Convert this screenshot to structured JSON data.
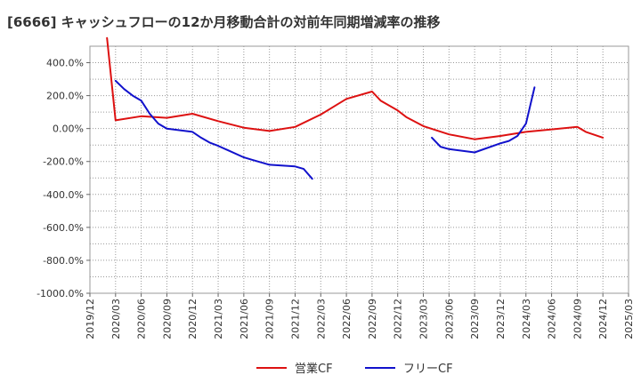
{
  "chart_data": {
    "type": "line",
    "title": "[6666]  キャッシュフローの12か月移動合計の対前年同期増減率の推移",
    "xlabel": "",
    "ylabel": "",
    "ylim": [
      -1000,
      500
    ],
    "y_ticks": [
      400,
      200,
      0,
      -200,
      -400,
      -600,
      -800,
      -1000
    ],
    "y_tick_labels": [
      "400.0%",
      "200.0%",
      "0.00%",
      "-200.0%",
      "-400.0%",
      "-600.0%",
      "-800.0%",
      "-1000.0%"
    ],
    "x_ticks": [
      "2019/12",
      "2020/03",
      "2020/06",
      "2020/09",
      "2020/12",
      "2021/03",
      "2021/06",
      "2021/09",
      "2021/12",
      "2022/03",
      "2022/06",
      "2022/09",
      "2022/12",
      "2023/03",
      "2023/06",
      "2023/09",
      "2023/12",
      "2024/03",
      "2024/06",
      "2024/09",
      "2024/12",
      "2025/03"
    ],
    "grid": true,
    "legend_position": "bottom-center",
    "series": [
      {
        "name": "営業CF",
        "color": "#dd1111",
        "points": [
          [
            "2020/02",
            550
          ],
          [
            "2020/03",
            50
          ],
          [
            "2020/06",
            75
          ],
          [
            "2020/09",
            65
          ],
          [
            "2020/12",
            90
          ],
          [
            "2021/03",
            45
          ],
          [
            "2021/06",
            5
          ],
          [
            "2021/09",
            -15
          ],
          [
            "2021/12",
            10
          ],
          [
            "2022/03",
            85
          ],
          [
            "2022/06",
            180
          ],
          [
            "2022/09",
            225
          ],
          [
            "2022/10",
            170
          ],
          [
            "2022/12",
            110
          ],
          [
            "2023/01",
            70
          ],
          [
            "2023/03",
            15
          ],
          [
            "2023/06",
            -35
          ],
          [
            "2023/09",
            -65
          ],
          [
            "2023/12",
            -45
          ],
          [
            "2024/03",
            -20
          ],
          [
            "2024/06",
            -5
          ],
          [
            "2024/09",
            10
          ],
          [
            "2024/10",
            -20
          ],
          [
            "2024/12",
            -55
          ]
        ]
      },
      {
        "name": "フリーCF",
        "color": "#1111cc",
        "points": [
          [
            "2020/03",
            290
          ],
          [
            "2020/04",
            240
          ],
          [
            "2020/05",
            200
          ],
          [
            "2020/06",
            170
          ],
          [
            "2020/07",
            90
          ],
          [
            "2020/08",
            30
          ],
          [
            "2020/09",
            0
          ],
          [
            "2020/12",
            -20
          ],
          [
            "2021/01",
            -55
          ],
          [
            "2021/02",
            -85
          ],
          [
            "2021/03",
            -105
          ],
          [
            "2021/06",
            -175
          ],
          [
            "2021/07",
            -190
          ],
          [
            "2021/09",
            -220
          ],
          [
            "2021/12",
            -230
          ],
          [
            "2022/01",
            -245
          ],
          [
            "2022/02",
            -305
          ],
          null,
          [
            "2023/04",
            -55
          ],
          [
            "2023/05",
            -110
          ],
          [
            "2023/06",
            -125
          ],
          [
            "2023/09",
            -145
          ],
          [
            "2023/12",
            -90
          ],
          [
            "2024/01",
            -75
          ],
          [
            "2024/02",
            -45
          ],
          [
            "2024/03",
            30
          ],
          [
            "2024/04",
            250
          ]
        ]
      }
    ]
  }
}
